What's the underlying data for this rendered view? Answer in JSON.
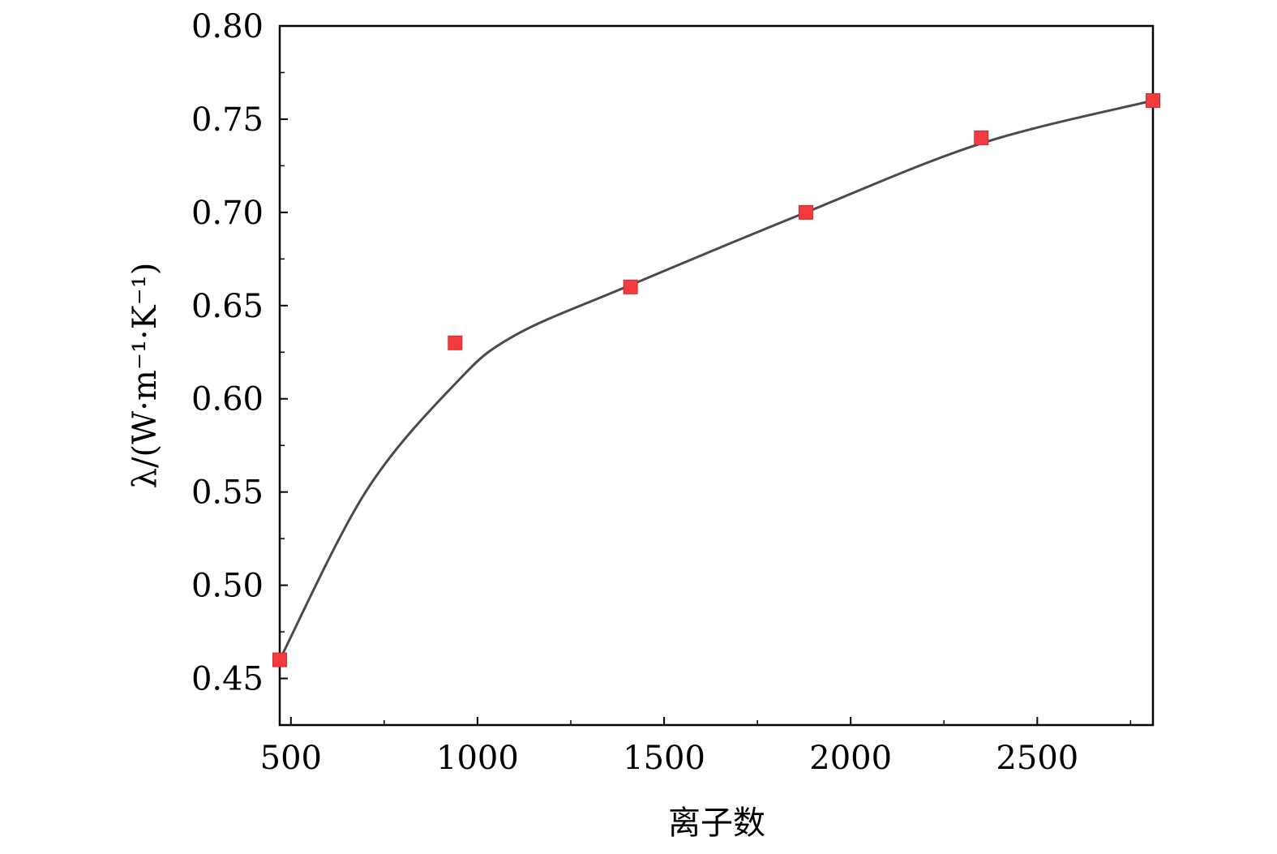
{
  "chart_data": {
    "type": "scatter",
    "title": "",
    "xlabel": "离子数",
    "ylabel": "λ/(W·m⁻¹·K⁻¹)",
    "xlim": [
      470,
      2810
    ],
    "ylim": [
      0.425,
      0.8
    ],
    "x_ticks": [
      500,
      1000,
      1500,
      2000,
      2500
    ],
    "x_tick_labels": [
      "500",
      "1000",
      "1500",
      "2000",
      "2500"
    ],
    "y_ticks": [
      0.45,
      0.5,
      0.55,
      0.6,
      0.65,
      0.7,
      0.75,
      0.8
    ],
    "y_tick_labels": [
      "0.45",
      "0.50",
      "0.55",
      "0.60",
      "0.65",
      "0.70",
      "0.75",
      "0.80"
    ],
    "grid": false,
    "legend": "none",
    "series": [
      {
        "type": "scatter",
        "marker": "square",
        "color": "#f23a3f",
        "x": [
          470,
          940,
          1410,
          1880,
          2350,
          2810
        ],
        "y": [
          0.46,
          0.63,
          0.66,
          0.7,
          0.74,
          0.76
        ]
      },
      {
        "type": "line",
        "color": "#4a4a4a",
        "x": [
          470,
          700,
          940,
          1100,
          1410,
          1880,
          2350,
          2810
        ],
        "y": [
          0.46,
          0.55,
          0.608,
          0.634,
          0.661,
          0.7,
          0.737,
          0.76
        ]
      }
    ]
  }
}
